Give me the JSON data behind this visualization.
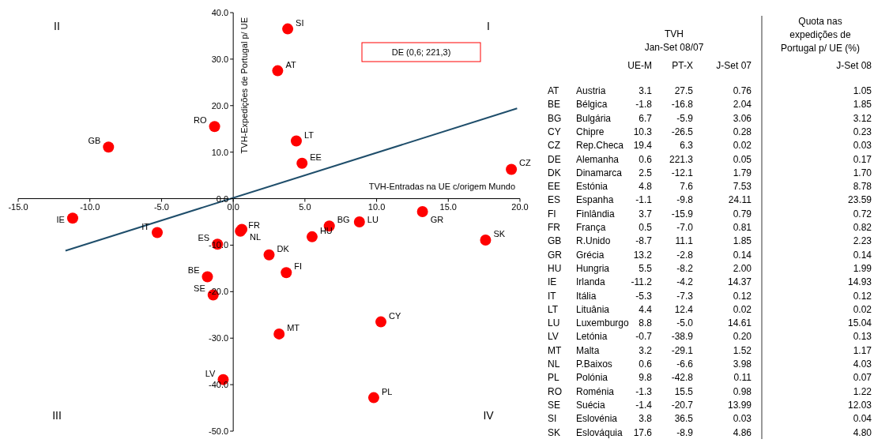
{
  "chart_data": [
    {
      "type": "scatter",
      "xlabel": "TVH-Entradas na UE c/origem Mundo",
      "ylabel": "TVH-Expedições de Portugal p/ UE",
      "marker": "circle",
      "xlim": [
        -15,
        20
      ],
      "ylim": [
        -50,
        40
      ],
      "xticks": [
        {
          "value": -15,
          "label": "-15.0"
        },
        {
          "value": -10,
          "label": "-10.0"
        },
        {
          "value": -5,
          "label": "-5.0"
        },
        {
          "value": 0,
          "label": "0.0"
        },
        {
          "value": 5,
          "label": "5.0"
        },
        {
          "value": 10,
          "label": "10.0"
        },
        {
          "value": 15,
          "label": "15.0"
        },
        {
          "value": 20,
          "label": "20.0"
        }
      ],
      "yticks": [
        {
          "value": -50,
          "label": "-50.0"
        },
        {
          "value": -40,
          "label": "-40.0"
        },
        {
          "value": -30,
          "label": "-30.0"
        },
        {
          "value": -20,
          "label": "-20.0"
        },
        {
          "value": -10,
          "label": "-10.0"
        },
        {
          "value": 0,
          "label": "0.0"
        },
        {
          "value": 10,
          "label": "10.0"
        },
        {
          "value": 20,
          "label": "20.0"
        },
        {
          "value": 30,
          "label": "30.0"
        },
        {
          "value": 40,
          "label": "40.0"
        }
      ],
      "series": [
        {
          "type": "scatter",
          "color": "#ff0000",
          "x": [
            3.1,
            -1.8,
            6.7,
            10.3,
            19.4,
            2.5,
            4.8,
            -1.1,
            3.7,
            0.5,
            -8.7,
            13.2,
            5.5,
            -11.2,
            -5.3,
            4.4,
            8.8,
            -0.7,
            3.2,
            0.6,
            9.8,
            -1.3,
            -1.4,
            3.8,
            17.6
          ],
          "values": [
            27.5,
            -16.8,
            -5.9,
            -26.5,
            6.3,
            -12.1,
            7.6,
            -9.8,
            -15.9,
            -7.0,
            11.1,
            -2.8,
            -8.2,
            -4.2,
            -7.3,
            12.4,
            -5.0,
            -38.9,
            -29.1,
            -6.6,
            -42.8,
            15.5,
            -20.7,
            36.5,
            -8.9
          ]
        },
        {
          "type": "line",
          "color": "#1f4e6b",
          "marker": "none",
          "x": [
            -11.7,
            19.8
          ],
          "values": [
            -11.2,
            19.4
          ]
        }
      ],
      "annotations": [
        "I",
        "II",
        "III",
        "IV",
        "DE (0,6; 221,3)",
        {
          "text": "AT",
          "x": 3.1,
          "y": 27.5
        },
        {
          "text": "BE",
          "x": -1.8,
          "y": -16.8
        },
        {
          "text": "BG",
          "x": 6.7,
          "y": -5.9
        },
        {
          "text": "CY",
          "x": 10.3,
          "y": -26.5
        },
        {
          "text": "CZ",
          "x": 19.4,
          "y": 6.3
        },
        {
          "text": "DK",
          "x": 2.5,
          "y": -12.1
        },
        {
          "text": "EE",
          "x": 4.8,
          "y": 7.6
        },
        {
          "text": "ES",
          "x": -1.1,
          "y": -9.8
        },
        {
          "text": "FI",
          "x": 3.7,
          "y": -15.9
        },
        {
          "text": "FR",
          "x": 0.5,
          "y": -7.0
        },
        {
          "text": "GB",
          "x": -8.7,
          "y": 11.1
        },
        {
          "text": "GR",
          "x": 13.2,
          "y": -2.8
        },
        {
          "text": "HU",
          "x": 5.5,
          "y": -8.2
        },
        {
          "text": "IE",
          "x": -11.2,
          "y": -4.2
        },
        {
          "text": "IT",
          "x": -5.3,
          "y": -7.3
        },
        {
          "text": "LT",
          "x": 4.4,
          "y": 12.4
        },
        {
          "text": "LU",
          "x": 8.8,
          "y": -5.0
        },
        {
          "text": "LV",
          "x": -0.7,
          "y": -38.9
        },
        {
          "text": "MT",
          "x": 3.2,
          "y": -29.1
        },
        {
          "text": "NL",
          "x": 0.6,
          "y": -6.6
        },
        {
          "text": "PL",
          "x": 9.8,
          "y": -42.8
        },
        {
          "text": "RO",
          "x": -1.3,
          "y": 15.5
        },
        {
          "text": "SE",
          "x": -1.4,
          "y": -20.7
        },
        {
          "text": "SI",
          "x": 3.8,
          "y": 36.5
        },
        {
          "text": "SK",
          "x": 17.6,
          "y": -8.9
        }
      ]
    },
    {
      "type": "other",
      "categories": [
        "UE-M",
        "PT-X",
        "J-Set 07",
        "J-Set 08"
      ],
      "y_categories": [
        "AT",
        "BE",
        "BG",
        "CY",
        "CZ",
        "DE",
        "DK",
        "EE",
        "ES",
        "FI",
        "FR",
        "GB",
        "GR",
        "HU",
        "IE",
        "IT",
        "LT",
        "LU",
        "LV",
        "MT",
        "NL",
        "PL",
        "RO",
        "SE",
        "SI",
        "SK"
      ],
      "y2_categories": [
        "Austria",
        "Bélgica",
        "Bulgária",
        "Chipre",
        "Rep.Checa",
        "Alemanha",
        "Dinamarca",
        "Estónia",
        "Espanha",
        "Finlândia",
        "França",
        "R.Unido",
        "Grécia",
        "Hungria",
        "Irlanda",
        "Itália",
        "Lituânia",
        "Luxemburgo",
        "Letónia",
        "Malta",
        "P.Baixos",
        "Polónia",
        "Roménia",
        "Suécia",
        "Eslovénia",
        "Eslováquia"
      ],
      "annotations": [
        "TVH",
        "Jan-Set 08/07",
        "Quota nas expedições de Portugal p/ UE (%)",
        "3.1",
        "27.5",
        "0.76",
        "1.05",
        "-1.8",
        "-16.8",
        "2.04",
        "1.85",
        "6.7",
        "-5.9",
        "3.06",
        "3.12",
        "10.3",
        "-26.5",
        "0.28",
        "0.23",
        "19.4",
        "6.3",
        "0.02",
        "0.03",
        "0.6",
        "221.3",
        "0.05",
        "0.17",
        "2.5",
        "-12.1",
        "1.79",
        "1.70",
        "4.8",
        "7.6",
        "7.53",
        "8.78",
        "-1.1",
        "-9.8",
        "24.11",
        "23.59",
        "3.7",
        "-15.9",
        "0.79",
        "0.72",
        "0.5",
        "-7.0",
        "0.81",
        "0.82",
        "-8.7",
        "11.1",
        "1.85",
        "2.23",
        "13.2",
        "-2.8",
        "0.14",
        "0.14",
        "5.5",
        "-8.2",
        "2.00",
        "1.99",
        "-11.2",
        "-4.2",
        "14.37",
        "14.93",
        "-5.3",
        "-7.3",
        "0.12",
        "0.12",
        "4.4",
        "12.4",
        "0.02",
        "0.02",
        "8.8",
        "-5.0",
        "14.61",
        "15.04",
        "-0.7",
        "-38.9",
        "0.20",
        "0.13",
        "3.2",
        "-29.1",
        "1.52",
        "1.17",
        "0.6",
        "-6.6",
        "3.98",
        "4.03",
        "9.8",
        "-42.8",
        "0.11",
        "0.07",
        "-1.3",
        "15.5",
        "0.98",
        "1.22",
        "-1.4",
        "-20.7",
        "13.99",
        "12.03",
        "3.8",
        "36.5",
        "0.03",
        "0.04",
        "17.6",
        "-8.9",
        "4.86",
        "4.80"
      ]
    }
  ]
}
